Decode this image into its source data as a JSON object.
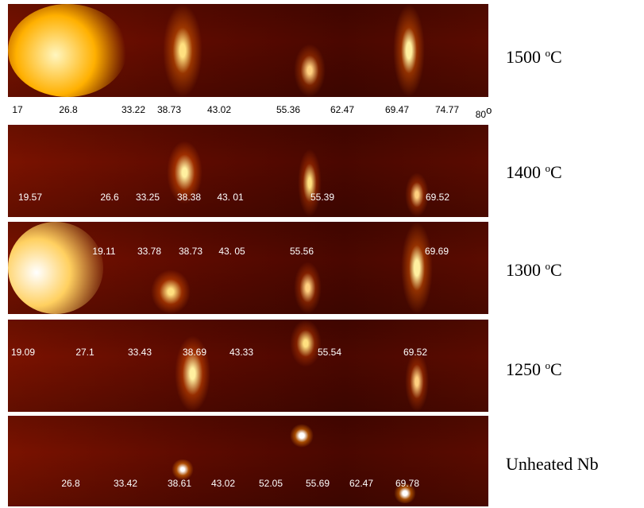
{
  "panels": [
    {
      "temp": "1500",
      "degree": "o",
      "unit": "C",
      "peaks": []
    },
    {
      "temp": "1400",
      "degree": "o",
      "unit": "C",
      "peaks": [
        "19.57",
        "26.6",
        "33.25",
        "38.38",
        "43. 01",
        "55.39",
        "69.52"
      ]
    },
    {
      "temp": "1300",
      "degree": "o",
      "unit": "C",
      "peaks": [
        "19.11",
        "33.78",
        "38.73",
        "43. 05",
        "55.56",
        "69.69"
      ]
    },
    {
      "temp": "1250",
      "degree": "o",
      "unit": "C",
      "peaks": [
        "19.09",
        "27.1",
        "33.43",
        "38.69",
        "43.33",
        "55.54",
        "69.52"
      ]
    },
    {
      "label": "Unheated Nb",
      "peaks": [
        "26.8",
        "33.42",
        "38.61",
        "43.02",
        "52.05",
        "55.69",
        "62.47",
        "69.78"
      ]
    }
  ],
  "axis": {
    "labels": [
      "17",
      "26.8",
      "33.22",
      "38.73",
      "43.02",
      "55.36",
      "62.47",
      "69.47",
      "74.77",
      "80"
    ],
    "unit": "o"
  }
}
